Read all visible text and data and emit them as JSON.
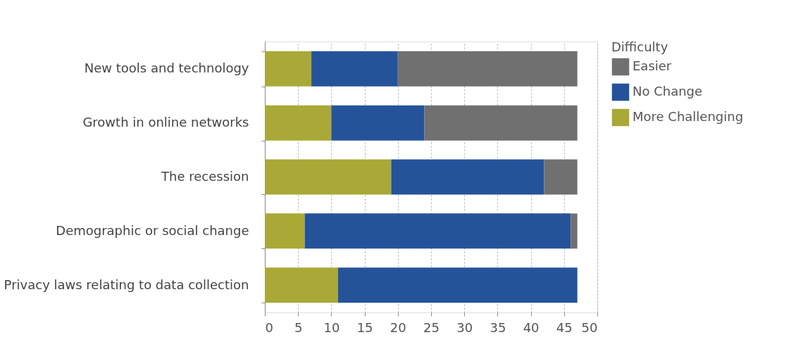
{
  "chart_data": {
    "type": "bar",
    "orientation": "horizontal",
    "stacked": true,
    "categories": [
      "New tools and technology",
      "Growth in online networks",
      "The recession",
      "Demographic or social change",
      "Privacy laws relating to data collection"
    ],
    "series": [
      {
        "name": "More Challenging",
        "color": "#a8a936",
        "values": [
          7,
          10,
          19,
          6,
          11
        ]
      },
      {
        "name": "No Change",
        "color": "#25539a",
        "values": [
          13,
          14,
          23,
          40,
          36
        ]
      },
      {
        "name": "Easier",
        "color": "#707070",
        "values": [
          27,
          23,
          5,
          1,
          0
        ]
      }
    ],
    "legend_title": "Difficulty",
    "legend": "right",
    "xlim": [
      0,
      50
    ],
    "xticks": [
      0,
      5,
      10,
      15,
      20,
      25,
      30,
      35,
      40,
      45,
      50
    ],
    "grid": "x"
  }
}
